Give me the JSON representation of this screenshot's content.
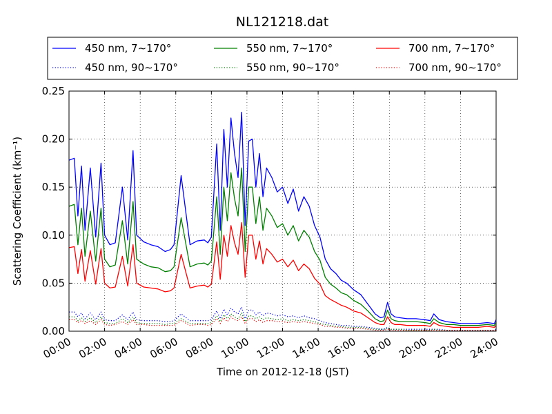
{
  "chart_data": {
    "type": "line",
    "title": "NL121218.dat",
    "xlabel": "Time on 2012-12-18 (JST)",
    "ylabel": "Scattering Coefficient (km⁻¹)",
    "xlim": [
      0,
      24
    ],
    "ylim": [
      0,
      0.25
    ],
    "xticks": [
      "00:00",
      "02:00",
      "04:00",
      "06:00",
      "08:00",
      "10:00",
      "12:00",
      "14:00",
      "16:00",
      "18:00",
      "20:00",
      "22:00",
      "24:00"
    ],
    "yticks": [
      "0.00",
      "0.05",
      "0.10",
      "0.15",
      "0.20",
      "0.25"
    ],
    "grid": true,
    "legend_position": "top",
    "x_hours": [
      0,
      0.3,
      0.5,
      0.7,
      0.9,
      1.2,
      1.5,
      1.8,
      2.0,
      2.3,
      2.6,
      3.0,
      3.3,
      3.6,
      3.8,
      4.2,
      4.6,
      5.0,
      5.4,
      5.7,
      5.9,
      6.3,
      6.8,
      7.2,
      7.6,
      7.8,
      8.0,
      8.3,
      8.5,
      8.7,
      8.9,
      9.1,
      9.3,
      9.5,
      9.7,
      9.9,
      10.1,
      10.3,
      10.5,
      10.7,
      10.9,
      11.1,
      11.4,
      11.7,
      12.0,
      12.3,
      12.6,
      12.9,
      13.2,
      13.5,
      13.8,
      14.1,
      14.4,
      14.7,
      15.0,
      15.3,
      15.6,
      16.0,
      16.4,
      16.8,
      17.2,
      17.5,
      17.7,
      17.9,
      18.1,
      18.3,
      18.6,
      19.0,
      19.5,
      20.0,
      20.3,
      20.5,
      20.8,
      21.2,
      21.6,
      22.0,
      22.5,
      23.0,
      23.5,
      23.9,
      24.0
    ],
    "series": [
      {
        "name": "450 nm, 7∼170°",
        "color": "#0000ff",
        "style": "solid",
        "values": [
          0.178,
          0.18,
          0.12,
          0.172,
          0.105,
          0.17,
          0.098,
          0.175,
          0.1,
          0.09,
          0.092,
          0.15,
          0.095,
          0.188,
          0.1,
          0.093,
          0.09,
          0.088,
          0.083,
          0.085,
          0.09,
          0.162,
          0.09,
          0.094,
          0.095,
          0.092,
          0.098,
          0.195,
          0.105,
          0.21,
          0.15,
          0.222,
          0.185,
          0.16,
          0.228,
          0.11,
          0.198,
          0.2,
          0.15,
          0.185,
          0.14,
          0.17,
          0.16,
          0.145,
          0.15,
          0.133,
          0.148,
          0.125,
          0.14,
          0.13,
          0.11,
          0.098,
          0.075,
          0.065,
          0.06,
          0.053,
          0.05,
          0.043,
          0.038,
          0.028,
          0.018,
          0.014,
          0.015,
          0.03,
          0.018,
          0.015,
          0.014,
          0.013,
          0.013,
          0.012,
          0.011,
          0.018,
          0.012,
          0.01,
          0.009,
          0.008,
          0.008,
          0.008,
          0.009,
          0.008,
          0.012
        ]
      },
      {
        "name": "550 nm, 7∼170°",
        "color": "#008000",
        "style": "solid",
        "values": [
          0.13,
          0.132,
          0.09,
          0.128,
          0.078,
          0.125,
          0.073,
          0.128,
          0.075,
          0.067,
          0.069,
          0.115,
          0.07,
          0.135,
          0.075,
          0.07,
          0.067,
          0.066,
          0.062,
          0.063,
          0.067,
          0.118,
          0.067,
          0.07,
          0.071,
          0.069,
          0.073,
          0.14,
          0.08,
          0.15,
          0.115,
          0.165,
          0.138,
          0.12,
          0.17,
          0.083,
          0.15,
          0.15,
          0.112,
          0.14,
          0.105,
          0.128,
          0.12,
          0.108,
          0.112,
          0.1,
          0.11,
          0.094,
          0.105,
          0.098,
          0.083,
          0.074,
          0.056,
          0.049,
          0.045,
          0.04,
          0.038,
          0.032,
          0.028,
          0.021,
          0.013,
          0.01,
          0.011,
          0.022,
          0.013,
          0.011,
          0.01,
          0.01,
          0.01,
          0.009,
          0.008,
          0.013,
          0.009,
          0.007,
          0.007,
          0.006,
          0.006,
          0.006,
          0.007,
          0.006,
          0.009
        ]
      },
      {
        "name": "700 nm, 7∼170°",
        "color": "#ff0000",
        "style": "solid",
        "values": [
          0.087,
          0.088,
          0.06,
          0.085,
          0.052,
          0.084,
          0.049,
          0.086,
          0.05,
          0.045,
          0.046,
          0.078,
          0.047,
          0.09,
          0.05,
          0.046,
          0.045,
          0.044,
          0.041,
          0.042,
          0.045,
          0.08,
          0.045,
          0.047,
          0.048,
          0.046,
          0.049,
          0.093,
          0.054,
          0.1,
          0.078,
          0.11,
          0.092,
          0.08,
          0.113,
          0.056,
          0.1,
          0.1,
          0.075,
          0.094,
          0.07,
          0.086,
          0.08,
          0.072,
          0.075,
          0.067,
          0.074,
          0.063,
          0.07,
          0.065,
          0.055,
          0.049,
          0.037,
          0.033,
          0.03,
          0.027,
          0.025,
          0.021,
          0.019,
          0.014,
          0.009,
          0.007,
          0.007,
          0.015,
          0.009,
          0.007,
          0.007,
          0.006,
          0.006,
          0.006,
          0.005,
          0.009,
          0.006,
          0.005,
          0.004,
          0.004,
          0.004,
          0.004,
          0.005,
          0.004,
          0.006
        ]
      },
      {
        "name": "450 nm, 90∼170°",
        "color": "#0000ff",
        "style": "dotted",
        "values": [
          0.02,
          0.02,
          0.015,
          0.019,
          0.013,
          0.019,
          0.012,
          0.02,
          0.012,
          0.011,
          0.011,
          0.017,
          0.012,
          0.02,
          0.012,
          0.011,
          0.011,
          0.011,
          0.01,
          0.01,
          0.011,
          0.018,
          0.011,
          0.011,
          0.011,
          0.011,
          0.012,
          0.021,
          0.013,
          0.023,
          0.017,
          0.024,
          0.02,
          0.018,
          0.025,
          0.013,
          0.022,
          0.022,
          0.017,
          0.02,
          0.016,
          0.019,
          0.018,
          0.016,
          0.017,
          0.015,
          0.016,
          0.014,
          0.016,
          0.014,
          0.013,
          0.011,
          0.009,
          0.008,
          0.007,
          0.006,
          0.006,
          0.005,
          0.005,
          0.004,
          0.003,
          0.002,
          0.002,
          0.004,
          0.002,
          0.002,
          0.002,
          0.002,
          0.002,
          0.002,
          0.002,
          0.002,
          0.002,
          0.001,
          0.001,
          0.001,
          0.001,
          0.001,
          0.001,
          0.001,
          0.002
        ]
      },
      {
        "name": "550 nm, 90∼170°",
        "color": "#008000",
        "style": "dotted",
        "values": [
          0.015,
          0.015,
          0.011,
          0.014,
          0.01,
          0.014,
          0.009,
          0.015,
          0.009,
          0.008,
          0.008,
          0.013,
          0.009,
          0.015,
          0.009,
          0.008,
          0.008,
          0.008,
          0.007,
          0.008,
          0.008,
          0.013,
          0.008,
          0.008,
          0.008,
          0.008,
          0.009,
          0.016,
          0.01,
          0.017,
          0.013,
          0.018,
          0.015,
          0.013,
          0.019,
          0.01,
          0.016,
          0.016,
          0.013,
          0.015,
          0.012,
          0.014,
          0.013,
          0.012,
          0.013,
          0.011,
          0.012,
          0.011,
          0.012,
          0.011,
          0.01,
          0.008,
          0.007,
          0.006,
          0.005,
          0.005,
          0.004,
          0.004,
          0.004,
          0.003,
          0.002,
          0.002,
          0.002,
          0.003,
          0.002,
          0.002,
          0.002,
          0.001,
          0.001,
          0.001,
          0.001,
          0.002,
          0.001,
          0.001,
          0.001,
          0.001,
          0.001,
          0.001,
          0.001,
          0.001,
          0.001
        ]
      },
      {
        "name": "700 nm, 90∼170°",
        "color": "#ff0000",
        "style": "dotted",
        "values": [
          0.012,
          0.012,
          0.009,
          0.011,
          0.008,
          0.011,
          0.007,
          0.012,
          0.007,
          0.006,
          0.007,
          0.01,
          0.007,
          0.012,
          0.007,
          0.007,
          0.006,
          0.006,
          0.006,
          0.006,
          0.006,
          0.011,
          0.006,
          0.007,
          0.007,
          0.006,
          0.007,
          0.013,
          0.008,
          0.014,
          0.01,
          0.015,
          0.012,
          0.011,
          0.015,
          0.008,
          0.013,
          0.013,
          0.01,
          0.012,
          0.009,
          0.011,
          0.011,
          0.01,
          0.01,
          0.009,
          0.01,
          0.009,
          0.01,
          0.009,
          0.008,
          0.007,
          0.005,
          0.005,
          0.004,
          0.004,
          0.003,
          0.003,
          0.003,
          0.002,
          0.001,
          0.001,
          0.001,
          0.002,
          0.001,
          0.001,
          0.001,
          0.001,
          0.001,
          0.001,
          0.001,
          0.001,
          0.001,
          0.001,
          0.001,
          0.001,
          0.001,
          0.001,
          0.001,
          0.001,
          0.001
        ]
      }
    ]
  }
}
